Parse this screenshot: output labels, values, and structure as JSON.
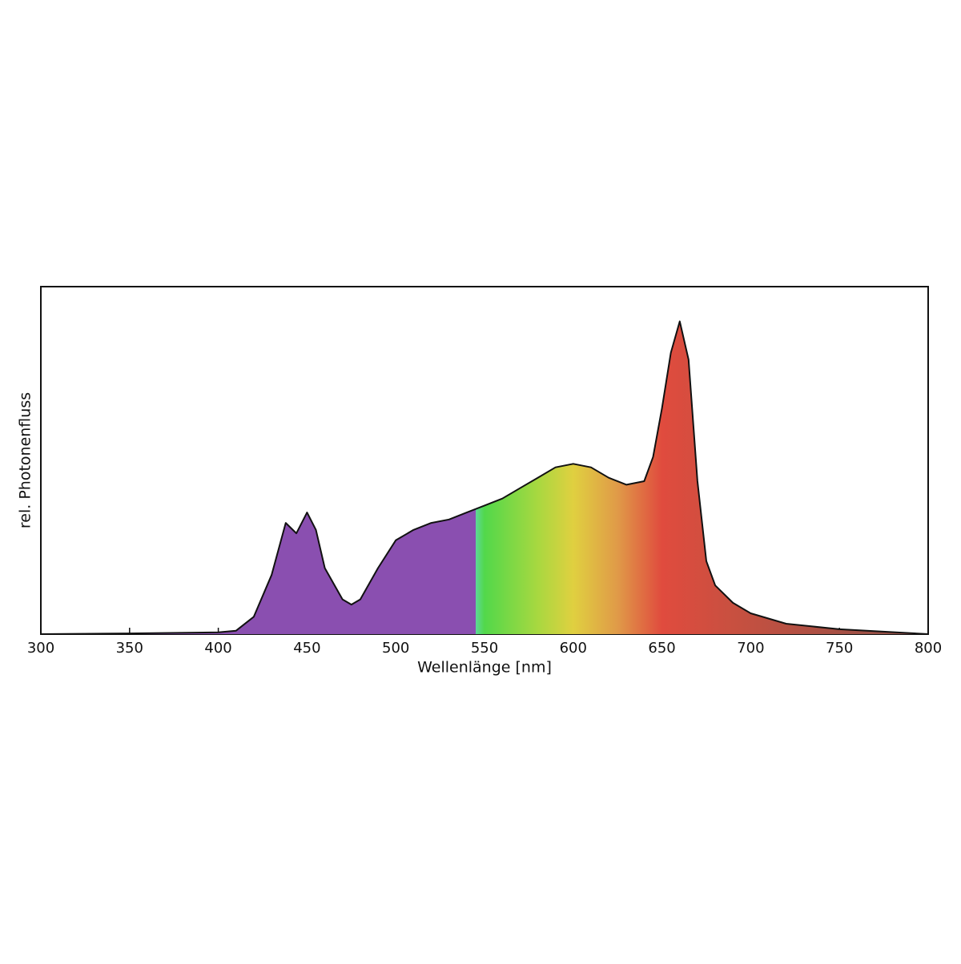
{
  "chart_data": {
    "type": "area",
    "xlabel": "Wellenlänge [nm]",
    "ylabel": "rel. Photonenfluss",
    "x": [
      300,
      350,
      400,
      410,
      420,
      430,
      438,
      444,
      450,
      455,
      460,
      470,
      475,
      480,
      490,
      500,
      510,
      520,
      530,
      540,
      550,
      560,
      570,
      580,
      590,
      600,
      610,
      620,
      630,
      640,
      645,
      650,
      655,
      660,
      665,
      670,
      675,
      680,
      690,
      700,
      720,
      750,
      800
    ],
    "values": [
      0,
      0.002,
      0.005,
      0.01,
      0.05,
      0.17,
      0.32,
      0.29,
      0.35,
      0.3,
      0.19,
      0.1,
      0.085,
      0.1,
      0.19,
      0.27,
      0.3,
      0.32,
      0.33,
      0.35,
      0.37,
      0.39,
      0.42,
      0.45,
      0.48,
      0.49,
      0.48,
      0.45,
      0.43,
      0.44,
      0.51,
      0.65,
      0.81,
      0.9,
      0.79,
      0.44,
      0.21,
      0.14,
      0.09,
      0.06,
      0.03,
      0.014,
      0
    ],
    "xlim": [
      300,
      800
    ],
    "ylim": [
      0,
      1
    ],
    "xticks": [
      300,
      350,
      400,
      450,
      500,
      550,
      600,
      650,
      700,
      750,
      800
    ]
  }
}
